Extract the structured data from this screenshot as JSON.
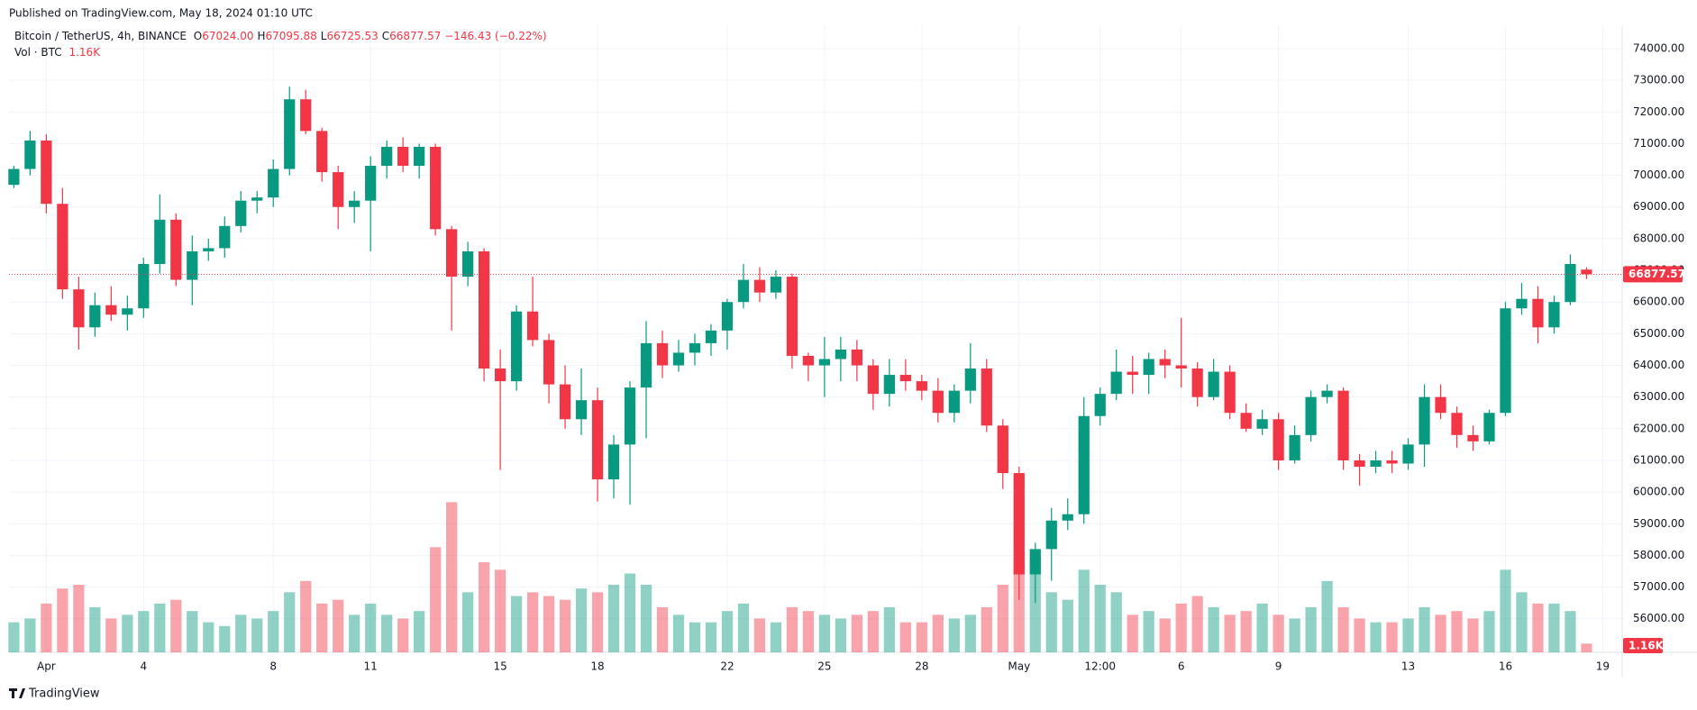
{
  "chart_data": {
    "type": "candlestick",
    "published": "Published on TradingView.com, May 18, 2024 01:10 UTC",
    "title": "Bitcoin / TetherUS, 4h, BINANCE",
    "legend_ohlc": [
      {
        "key": "O",
        "value": "67024.00"
      },
      {
        "key": "H",
        "value": "67095.88"
      },
      {
        "key": "L",
        "value": "66725.53"
      },
      {
        "key": "C",
        "value": "66877.57"
      }
    ],
    "legend_change": "−146.43 (−0.22%)",
    "vol_legend": {
      "name": "Vol · BTC",
      "value": "1.16K"
    },
    "brand": "TradingView",
    "up_color": "#089981",
    "down_color": "#f23645",
    "x": [
      -1,
      -0.5,
      0,
      0.5,
      1,
      1.5,
      2,
      2.5,
      3,
      3.5,
      4,
      4.5,
      5,
      5.5,
      6,
      6.5,
      7,
      7.5,
      8,
      8.5,
      9,
      9.5,
      10,
      10.5,
      11,
      11.5,
      12,
      12.5,
      13,
      13.5,
      14,
      14.5,
      15,
      15.5,
      16,
      16.5,
      17,
      17.5,
      18,
      18.5,
      19,
      19.5,
      20,
      20.5,
      21,
      21.5,
      22,
      22.5,
      23,
      23.5,
      24,
      24.5,
      25,
      25.5,
      26,
      26.5,
      27,
      27.5,
      28,
      28.5,
      29,
      29.5,
      30,
      30.5,
      31,
      31.5,
      32,
      32.5,
      33,
      33.5,
      34,
      34.5,
      35,
      35.5,
      36,
      36.5,
      37,
      37.5,
      38,
      38.5,
      39,
      39.5,
      40,
      40.5,
      41,
      41.5,
      42,
      42.5,
      43,
      43.5,
      44,
      44.5,
      45,
      45.5,
      46,
      46.5,
      47,
      47.5
    ],
    "open": [
      69700,
      70200,
      71100,
      69100,
      66400,
      65200,
      65900,
      65600,
      65800,
      67200,
      68600,
      66700,
      67600,
      67700,
      68400,
      69200,
      69300,
      70200,
      72400,
      71400,
      70100,
      69000,
      69200,
      70300,
      70900,
      70300,
      70900,
      68300,
      66800,
      67600,
      63900,
      63500,
      65700,
      64800,
      63400,
      62300,
      62900,
      60400,
      61500,
      63300,
      64700,
      64000,
      64400,
      64700,
      65100,
      66000,
      66700,
      66300,
      66800,
      64300,
      64000,
      64200,
      64500,
      64000,
      63100,
      63700,
      63500,
      63200,
      62500,
      63200,
      63900,
      62100,
      60600,
      57400,
      58200,
      59100,
      59300,
      62400,
      63100,
      63800,
      63700,
      64200,
      64000,
      63900,
      63000,
      63800,
      62500,
      62000,
      62300,
      61000,
      61800,
      63000,
      63200,
      61000,
      60800,
      61000,
      60900,
      61500,
      63000,
      62500,
      61800,
      61600,
      62500,
      65800,
      66100,
      65200,
      66000,
      67024
    ],
    "high": [
      70300,
      71400,
      71300,
      69600,
      66800,
      66300,
      66500,
      66200,
      67400,
      69400,
      68800,
      68100,
      68000,
      68700,
      69500,
      69500,
      70500,
      72800,
      72700,
      71500,
      70300,
      69500,
      70600,
      71100,
      71200,
      71000,
      71000,
      68400,
      67900,
      67700,
      64500,
      65900,
      66800,
      65000,
      64000,
      63900,
      63300,
      61800,
      63500,
      65400,
      65100,
      64800,
      65000,
      65300,
      66100,
      67200,
      67100,
      67000,
      66900,
      64400,
      64900,
      64900,
      64800,
      64200,
      64200,
      64200,
      63700,
      63600,
      63400,
      64700,
      64200,
      62300,
      60800,
      58400,
      59500,
      59800,
      63000,
      63300,
      64500,
      64300,
      64400,
      64500,
      65500,
      64100,
      64200,
      64000,
      62800,
      62600,
      62500,
      62100,
      63200,
      63400,
      63300,
      61200,
      61300,
      61300,
      61700,
      63400,
      63400,
      62700,
      62100,
      62600,
      66000,
      66600,
      66500,
      66200,
      67500,
      67095.88
    ],
    "low": [
      69600,
      70000,
      68800,
      66100,
      64500,
      64900,
      65400,
      65100,
      65500,
      66900,
      66500,
      65900,
      67300,
      67400,
      68200,
      68800,
      69000,
      70000,
      71300,
      69800,
      68300,
      68500,
      67600,
      69900,
      70100,
      69900,
      68100,
      65100,
      66500,
      63500,
      60700,
      63200,
      64600,
      62800,
      62000,
      61800,
      59700,
      59800,
      59600,
      61700,
      63600,
      63800,
      64000,
      64300,
      64500,
      65800,
      66000,
      66100,
      63900,
      63500,
      63000,
      63500,
      63500,
      62600,
      62700,
      63200,
      62900,
      62200,
      62200,
      62800,
      61900,
      60100,
      56600,
      56500,
      57200,
      58800,
      59000,
      62100,
      62900,
      63100,
      63100,
      63600,
      63300,
      62700,
      62900,
      62300,
      61900,
      61800,
      60700,
      60900,
      61600,
      62800,
      60700,
      60200,
      60600,
      60600,
      60700,
      60800,
      62300,
      61400,
      61300,
      61500,
      62400,
      65600,
      64700,
      65000,
      65900,
      66725.53
    ],
    "close": [
      70200,
      71100,
      69100,
      66400,
      65200,
      65900,
      65600,
      65800,
      67200,
      68600,
      66700,
      67600,
      67700,
      68400,
      69200,
      69300,
      70200,
      72400,
      71400,
      70100,
      69000,
      69200,
      70300,
      70900,
      70300,
      70900,
      68300,
      66800,
      67600,
      63900,
      63500,
      65700,
      64800,
      63400,
      62300,
      62900,
      60400,
      61500,
      63300,
      64700,
      64000,
      64400,
      64700,
      65100,
      66000,
      66700,
      66300,
      66800,
      64300,
      64000,
      64200,
      64500,
      64000,
      63100,
      63700,
      63500,
      63200,
      62500,
      63200,
      63900,
      62100,
      60600,
      57400,
      58200,
      59100,
      59300,
      62400,
      63100,
      63800,
      63700,
      64200,
      64000,
      63900,
      63000,
      63800,
      62500,
      62000,
      62300,
      61000,
      61800,
      63000,
      63200,
      61000,
      60800,
      61000,
      60900,
      61500,
      63000,
      62500,
      61800,
      61600,
      62500,
      65800,
      66100,
      65200,
      66000,
      67200,
      66877.57
    ],
    "volume": [
      4000,
      4500,
      6500,
      8500,
      9000,
      6000,
      4500,
      5000,
      5500,
      6500,
      7000,
      5500,
      4000,
      3500,
      5000,
      4500,
      5500,
      8000,
      9500,
      6500,
      7000,
      5000,
      6500,
      5000,
      4500,
      5500,
      14000,
      20000,
      8000,
      12000,
      11000,
      7500,
      8000,
      7500,
      7000,
      8500,
      8000,
      9000,
      10500,
      9000,
      6000,
      5000,
      4000,
      4000,
      5500,
      6500,
      4500,
      4000,
      6000,
      5500,
      5000,
      4500,
      5000,
      5500,
      6000,
      4000,
      4000,
      5000,
      4500,
      5000,
      6000,
      9000,
      12000,
      13000,
      8000,
      7000,
      11000,
      9000,
      8000,
      5000,
      5500,
      4500,
      6500,
      7500,
      6000,
      5000,
      5500,
      6500,
      5000,
      4500,
      6000,
      9500,
      6000,
      4500,
      4000,
      4000,
      4500,
      6000,
      5000,
      5500,
      4500,
      5500,
      11000,
      8000,
      6500,
      6500,
      5500,
      1160
    ],
    "vlim": [
      0,
      24000
    ],
    "xlim": [
      -1.15,
      48.6
    ],
    "xticks": [
      {
        "value": 0,
        "label": "Apr"
      },
      {
        "value": 3,
        "label": "4"
      },
      {
        "value": 7,
        "label": "8"
      },
      {
        "value": 10,
        "label": "11"
      },
      {
        "value": 14,
        "label": "15"
      },
      {
        "value": 17,
        "label": "18"
      },
      {
        "value": 21,
        "label": "22"
      },
      {
        "value": 24,
        "label": "25"
      },
      {
        "value": 27,
        "label": "28"
      },
      {
        "value": 30,
        "label": "May"
      },
      {
        "value": 32.5,
        "label": "12:00"
      },
      {
        "value": 35,
        "label": "6"
      },
      {
        "value": 38,
        "label": "9"
      },
      {
        "value": 42,
        "label": "13"
      },
      {
        "value": 45,
        "label": "16"
      },
      {
        "value": 48,
        "label": "19"
      }
    ],
    "ylim": [
      54940,
      74710
    ],
    "yticks": [
      {
        "value": 56000,
        "label": "56000.00"
      },
      {
        "value": 57000,
        "label": "57000.00"
      },
      {
        "value": 58000,
        "label": "58000.00"
      },
      {
        "value": 59000,
        "label": "59000.00"
      },
      {
        "value": 60000,
        "label": "60000.00"
      },
      {
        "value": 61000,
        "label": "61000.00"
      },
      {
        "value": 62000,
        "label": "62000.00"
      },
      {
        "value": 63000,
        "label": "63000.00"
      },
      {
        "value": 64000,
        "label": "64000.00"
      },
      {
        "value": 65000,
        "label": "65000.00"
      },
      {
        "value": 66000,
        "label": "66000.00"
      },
      {
        "value": 67000,
        "label": "67000.00"
      },
      {
        "value": 68000,
        "label": "68000.00"
      },
      {
        "value": 69000,
        "label": "69000.00"
      },
      {
        "value": 70000,
        "label": "70000.00"
      },
      {
        "value": 71000,
        "label": "71000.00"
      },
      {
        "value": 72000,
        "label": "72000.00"
      },
      {
        "value": 73000,
        "label": "73000.00"
      },
      {
        "value": 74000,
        "label": "74000.00"
      }
    ],
    "grid": true
  }
}
